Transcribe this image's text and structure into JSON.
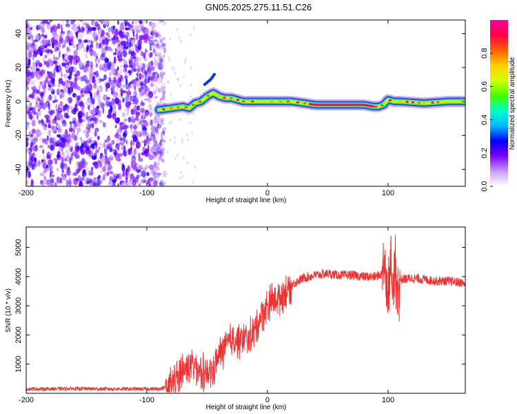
{
  "figure": {
    "title": "GN05.2025.275.11.51.C26"
  },
  "chart_data": [
    {
      "type": "heatmap",
      "title": "GN05.2025.275.11.51.C26",
      "xlabel": "Height of straight line (km)",
      "ylabel": "Frequency (Hz)",
      "xlim": [
        -200,
        164
      ],
      "ylim": [
        -50,
        48
      ],
      "xticks": [
        -200,
        -100,
        0,
        100
      ],
      "yticks": [
        -40,
        -20,
        0,
        20,
        40
      ],
      "noise_region_x": [
        -200,
        -90
      ],
      "ridge": {
        "x": [
          -90,
          -80,
          -70,
          -65,
          -60,
          -55,
          -50,
          -45,
          -40,
          -35,
          -30,
          -25,
          -20,
          -10,
          0,
          10,
          20,
          30,
          40,
          60,
          80,
          88,
          92,
          96,
          100,
          105,
          110,
          130,
          150,
          164
        ],
        "y": [
          -5,
          -4,
          -3,
          -4,
          -1,
          0,
          3,
          5,
          3,
          2,
          2,
          1,
          0,
          0,
          0,
          0,
          0,
          -1,
          -2,
          -2,
          -2,
          -3,
          -3,
          -2,
          1,
          0,
          0,
          -1,
          0,
          0
        ]
      },
      "colorbar": {
        "label": "Normalized spectral amplitude",
        "range": [
          0,
          1
        ],
        "ticks": [
          "0.0",
          "0.2",
          "0.4",
          "0.6",
          "0.8"
        ],
        "colors": [
          "#ffffff",
          "#c89cf2",
          "#7b00ff",
          "#0000ff",
          "#00b7ff",
          "#00ffc8",
          "#3dff00",
          "#d4ff00",
          "#ffd000",
          "#ff6000",
          "#ff0044",
          "#ff0099"
        ]
      },
      "grid": false,
      "legend": "none"
    },
    {
      "type": "line",
      "xlabel": "Height of straight line (km)",
      "ylabel": "SNR (10 * v/v)",
      "xlim": [
        -200,
        164
      ],
      "ylim": [
        0,
        5700
      ],
      "xticks": [
        -200,
        -100,
        0,
        100
      ],
      "yticks": [
        1000,
        2000,
        3000,
        4000,
        5000
      ],
      "color": "#ee3333",
      "series": [
        {
          "x": [
            -200,
            -180,
            -160,
            -140,
            -120,
            -100,
            -90,
            -85,
            -80,
            -75,
            -70,
            -65,
            -60,
            -55,
            -50,
            -45,
            -40,
            -35,
            -30,
            -25,
            -20,
            -15,
            -10,
            -5,
            0,
            5,
            10,
            15,
            20,
            25,
            30,
            40,
            50,
            60,
            70,
            80,
            90,
            95,
            98,
            100,
            102,
            104,
            106,
            108,
            110,
            120,
            130,
            140,
            150,
            160,
            164
          ],
          "values": [
            150,
            150,
            160,
            150,
            150,
            150,
            150,
            200,
            300,
            550,
            800,
            950,
            1000,
            750,
            650,
            800,
            1300,
            1600,
            1800,
            1850,
            1800,
            1900,
            2200,
            2700,
            3000,
            3200,
            3300,
            3500,
            3700,
            3850,
            3950,
            4050,
            4100,
            4050,
            4050,
            4000,
            4000,
            4100,
            4300,
            3500,
            4800,
            3200,
            4500,
            3600,
            3900,
            3950,
            3900,
            3850,
            3850,
            3800,
            3750
          ]
        }
      ],
      "grid": false,
      "legend": "none"
    }
  ]
}
